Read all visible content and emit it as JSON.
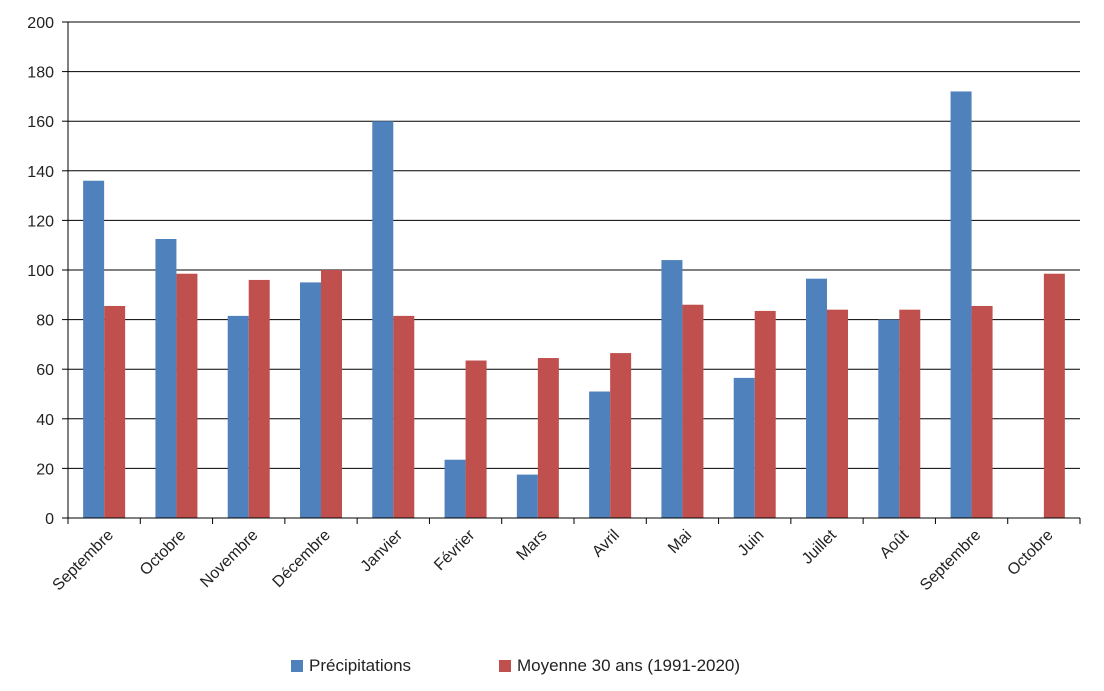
{
  "chart_data": {
    "type": "bar",
    "categories": [
      "Septembre",
      "Octobre",
      "Novembre",
      "Décembre",
      "Janvier",
      "Février",
      "Mars",
      "Avril",
      "Mai",
      "Juin",
      "Juillet",
      "Août",
      "Septembre",
      "Octobre"
    ],
    "series": [
      {
        "name": "Précipitations",
        "color": "#4f81bd",
        "values": [
          136,
          112.5,
          81.5,
          95,
          160,
          23.5,
          17.5,
          51,
          104,
          56.5,
          96.5,
          80,
          172,
          null
        ]
      },
      {
        "name": "Moyenne 30 ans (1991-2020)",
        "color": "#c0504d",
        "values": [
          85.5,
          98.5,
          96,
          100,
          81.5,
          63.5,
          64.5,
          66.5,
          86,
          83.5,
          84,
          84,
          85.5,
          98.5
        ]
      }
    ],
    "ylim": [
      0,
      200
    ],
    "yticks": [
      0,
      20,
      40,
      60,
      80,
      100,
      120,
      140,
      160,
      180,
      200
    ],
    "grid": true,
    "legend": "bottom",
    "title": "",
    "xlabel": "",
    "ylabel": ""
  }
}
